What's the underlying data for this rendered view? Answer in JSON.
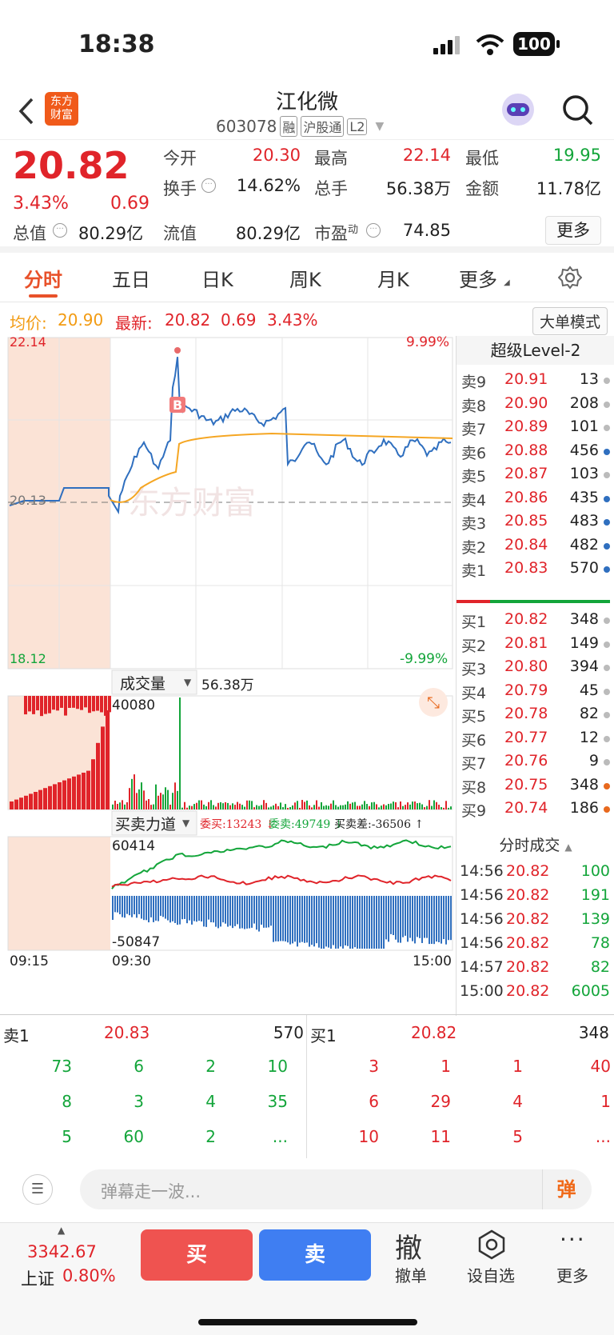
{
  "status": {
    "time": "18:38",
    "battery": "100"
  },
  "nav": {
    "logo_line1": "东方",
    "logo_line2": "财富",
    "title": "江化微",
    "code": "603078",
    "tags": [
      "融",
      "沪股通",
      "L2"
    ]
  },
  "quote": {
    "price": "20.82",
    "pct": "3.43%",
    "chg": "0.69",
    "open_label": "今开",
    "open": "20.30",
    "high_label": "最高",
    "high": "22.14",
    "low_label": "最低",
    "low": "19.95",
    "turnover_label": "换手",
    "turnover": "14.62%",
    "vol_label": "总手",
    "vol": "56.38万",
    "amt_label": "金额",
    "amt": "11.78亿",
    "mcap_label": "总值",
    "mcap": "80.29亿",
    "float_label": "流值",
    "float": "80.29亿",
    "pe_label": "市盈",
    "pe_sup": "动",
    "pe": "74.85",
    "more_btn": "更多"
  },
  "tabs": [
    "分时",
    "五日",
    "日K",
    "周K",
    "月K",
    "更多"
  ],
  "avg": {
    "avg_label": "均价:",
    "avg": "20.90",
    "last_label": "最新:",
    "last": "20.82",
    "chg": "0.69",
    "pct": "3.43%",
    "bigorder_btn": "大单模式"
  },
  "chart": {
    "ymax": "22.14",
    "ymin": "18.12",
    "pct_max": "9.99%",
    "pct_min": "-9.99%",
    "prev_close": "20.13",
    "watermark": "东方财富",
    "buy_marker": "B",
    "vol_label": "成交量",
    "vol_total": "56.38万",
    "vol_max": "40080",
    "force_label": "买卖力道",
    "wei_buy": "委买:13243",
    "wei_sell": "委卖:49749",
    "diff": "买卖差:-36506",
    "force_max": "60414",
    "force_min": "-50847",
    "t_start": "09:15",
    "t_open": "09:30",
    "t_end": "15:00",
    "colors": {
      "price": "#2f6fbf",
      "avg": "#f5a623",
      "up": "#e0242a",
      "down": "#13a53a"
    }
  },
  "orderbook": {
    "title": "超级Level-2",
    "sells": [
      {
        "l": "卖9",
        "p": "20.91",
        "v": "13",
        "d": "#bbb"
      },
      {
        "l": "卖8",
        "p": "20.90",
        "v": "208",
        "d": "#bbb"
      },
      {
        "l": "卖7",
        "p": "20.89",
        "v": "101",
        "d": "#bbb"
      },
      {
        "l": "卖6",
        "p": "20.88",
        "v": "456",
        "d": "#2f6fbf"
      },
      {
        "l": "卖5",
        "p": "20.87",
        "v": "103",
        "d": "#bbb"
      },
      {
        "l": "卖4",
        "p": "20.86",
        "v": "435",
        "d": "#2f6fbf"
      },
      {
        "l": "卖3",
        "p": "20.85",
        "v": "483",
        "d": "#2f6fbf"
      },
      {
        "l": "卖2",
        "p": "20.84",
        "v": "482",
        "d": "#2f6fbf"
      },
      {
        "l": "卖1",
        "p": "20.83",
        "v": "570",
        "d": "#2f6fbf"
      }
    ],
    "buys": [
      {
        "l": "买1",
        "p": "20.82",
        "v": "348",
        "d": "#bbb"
      },
      {
        "l": "买2",
        "p": "20.81",
        "v": "149",
        "d": "#bbb"
      },
      {
        "l": "买3",
        "p": "20.80",
        "v": "394",
        "d": "#bbb"
      },
      {
        "l": "买4",
        "p": "20.79",
        "v": "45",
        "d": "#bbb"
      },
      {
        "l": "买5",
        "p": "20.78",
        "v": "82",
        "d": "#bbb"
      },
      {
        "l": "买6",
        "p": "20.77",
        "v": "12",
        "d": "#bbb"
      },
      {
        "l": "买7",
        "p": "20.76",
        "v": "9",
        "d": "#bbb"
      },
      {
        "l": "买8",
        "p": "20.75",
        "v": "348",
        "d": "#e8691e"
      },
      {
        "l": "买9",
        "p": "20.74",
        "v": "186",
        "d": "#e8691e"
      }
    ],
    "ticks_title": "分时成交",
    "ticks": [
      {
        "t": "14:56",
        "p": "20.82",
        "v": "100"
      },
      {
        "t": "14:56",
        "p": "20.82",
        "v": "191"
      },
      {
        "t": "14:56",
        "p": "20.82",
        "v": "139"
      },
      {
        "t": "14:56",
        "p": "20.82",
        "v": "78"
      },
      {
        "t": "14:57",
        "p": "20.82",
        "v": "82"
      },
      {
        "t": "15:00",
        "p": "20.82",
        "v": "6005"
      }
    ]
  },
  "queue": {
    "sell_label": "卖1",
    "sell_price": "20.83",
    "sell_total": "570",
    "buy_label": "买1",
    "buy_price": "20.82",
    "buy_total": "348",
    "sell_rows": [
      [
        "73",
        "6",
        "2",
        "10"
      ],
      [
        "8",
        "3",
        "4",
        "35"
      ],
      [
        "5",
        "60",
        "2",
        "..."
      ]
    ],
    "buy_rows": [
      [
        "3",
        "1",
        "1",
        "40"
      ],
      [
        "6",
        "29",
        "4",
        "1"
      ],
      [
        "10",
        "11",
        "5",
        "..."
      ]
    ]
  },
  "danmu": {
    "placeholder": "弹幕走一波...",
    "send": "弹"
  },
  "bottom": {
    "index": "3342.67",
    "index_name": "上证",
    "index_pct": "0.80%",
    "buy": "买",
    "sell": "卖",
    "cancel_big": "撤",
    "cancel": "撤单",
    "watch": "设自选",
    "more": "更多"
  }
}
